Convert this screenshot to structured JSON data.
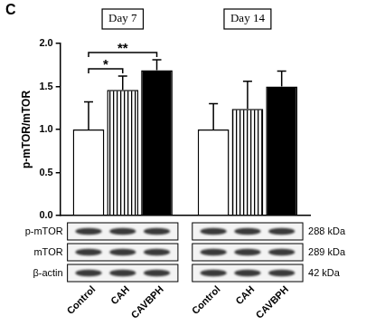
{
  "panel_label": "C",
  "chart_data": {
    "type": "bar",
    "categories": [
      "Day 7",
      "Day 14"
    ],
    "y_label": "p-mTOR/mTOR",
    "series": [
      {
        "name": "Control",
        "color": "#ffffff",
        "values": [
          1.0,
          1.0
        ],
        "errors": [
          0.32,
          0.3
        ]
      },
      {
        "name": "CAH",
        "color": "#ffffff",
        "values": [
          1.46,
          1.24
        ],
        "errors": [
          0.16,
          0.32
        ]
      },
      {
        "name": "CAVBPH",
        "color": "#000000",
        "values": [
          1.69,
          1.5
        ],
        "errors": [
          0.12,
          0.18
        ]
      }
    ],
    "ylim": [
      0,
      2
    ],
    "yticks": [
      {
        "value": 0,
        "label": "0.0"
      },
      {
        "value": 0.5,
        "label": "0.5"
      },
      {
        "value": 1,
        "label": "1.0"
      },
      {
        "value": 1.5,
        "label": "1.5"
      },
      {
        "value": 2,
        "label": "2.0"
      }
    ],
    "grid": false,
    "tick_labels": "y",
    "annotations": [
      {
        "category": "Day 7",
        "from": "Control",
        "to": "CAH",
        "text": "*"
      },
      {
        "category": "Day 7",
        "from": "Control",
        "to": "CAVBPH",
        "text": "**"
      }
    ]
  },
  "western_blot": {
    "rows": [
      {
        "label": "p-mTOR",
        "size": "288 kDa"
      },
      {
        "label": "mTOR",
        "size": "289 kDa"
      },
      {
        "label": "β-actin",
        "size": "42 kDa"
      }
    ]
  }
}
